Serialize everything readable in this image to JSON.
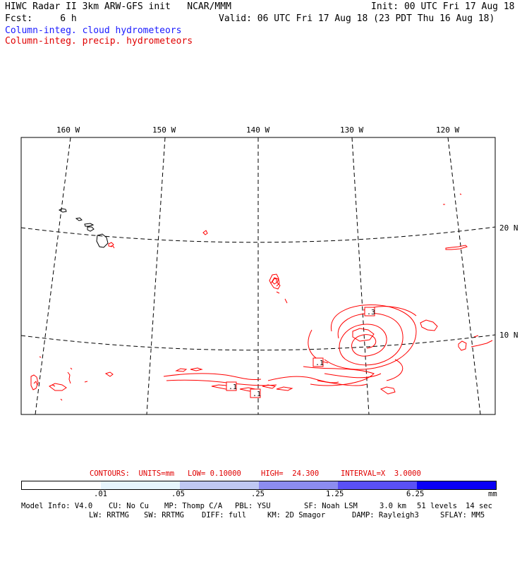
{
  "header": {
    "title": "HIWC Radar II 3km ARW-GFS init   NCAR/MMM",
    "init": "Init: 00 UTC Fri 17 Aug 18",
    "fcst": "Fcst:     6 h",
    "valid": "Valid: 06 UTC Fri 17 Aug 18 (23 PDT Thu 16 Aug 18)",
    "field_cloud": "Column-integ. cloud hydrometeors",
    "field_precip": "Column-integ. precip. hydrometeors"
  },
  "map": {
    "lon_labels": [
      "160 W",
      "150 W",
      "140 W",
      "130 W",
      "120 W"
    ],
    "lat_labels": [
      "20 N",
      "10 N"
    ],
    "contour_labels": [
      ".3",
      ".1",
      ".1",
      ".1"
    ],
    "colors": {
      "precip": "#ff0000",
      "coast": "#000000",
      "grid": "#000000"
    }
  },
  "contours": {
    "units": "CONTOURS:  UNITS=mm",
    "low": "LOW= 0.10000",
    "high": "HIGH=  24.300",
    "interval": "INTERVAL=X  3.0000"
  },
  "colorbar": {
    "labels": [
      ".01",
      ".05",
      ".25",
      "1.25",
      "6.25",
      "mm"
    ],
    "colors": [
      "#ffffff",
      "#e6f4fc",
      "#bfc8f2",
      "#8c8cf0",
      "#5a50f5",
      "#0a00f5"
    ]
  },
  "model_info": {
    "line1": [
      "Model Info: V4.0",
      "CU: No Cu",
      "MP: Thomp C/A",
      "PBL: YSU",
      "SF: Noah LSM",
      "3.0 km",
      "51 levels",
      "14 sec"
    ],
    "line2": [
      "LW: RRTMG",
      "SW: RRTMG",
      "DIFF: full",
      "KM: 2D Smagor",
      "DAMP: Rayleigh3",
      "SFLAY: MM5"
    ]
  }
}
